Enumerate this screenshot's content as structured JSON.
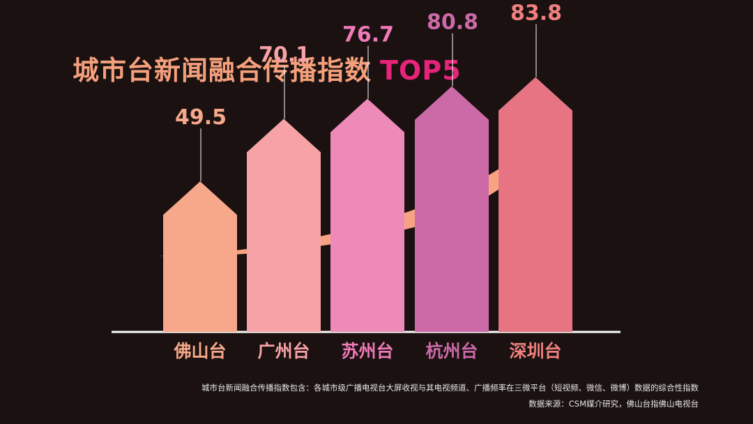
{
  "title": {
    "main": "城市台新闻融合传播指数",
    "highlight": "TOP5"
  },
  "colors": {
    "background": "#1a1110",
    "title": "#f5a07d",
    "highlight": "#e8237a",
    "arrow": "#f7a383",
    "baseline": "#ffffff"
  },
  "chart_data": {
    "type": "bar",
    "categories": [
      "佛山台",
      "广州台",
      "苏州台",
      "杭州台",
      "深圳台"
    ],
    "values": [
      49.5,
      70.1,
      76.7,
      80.8,
      83.8
    ],
    "value_labels": [
      "49.5",
      "70.1",
      "76.7",
      "80.8",
      "83.8"
    ],
    "bar_colors": [
      "#f7a88a",
      "#f7a2a6",
      "#ee8ab8",
      "#cc6aa8",
      "#e67482"
    ],
    "label_colors": [
      "#f7a88a",
      "#f7a2a6",
      "#f07ab8",
      "#cc6aa8",
      "#f08080"
    ],
    "ylim": [
      0,
      100
    ],
    "bar_shape": "house",
    "trend_arrow": true,
    "legend": "none",
    "grid": false
  },
  "footnotes": [
    "城市台新闻融合传播指数包含：各城市级广播电视台大屏收视与其电视频道、广播频率在三微平台（短视频、微信、微博）数据的综合性指数",
    "数据来源：CSM媒介研究，佛山台指佛山电视台"
  ]
}
